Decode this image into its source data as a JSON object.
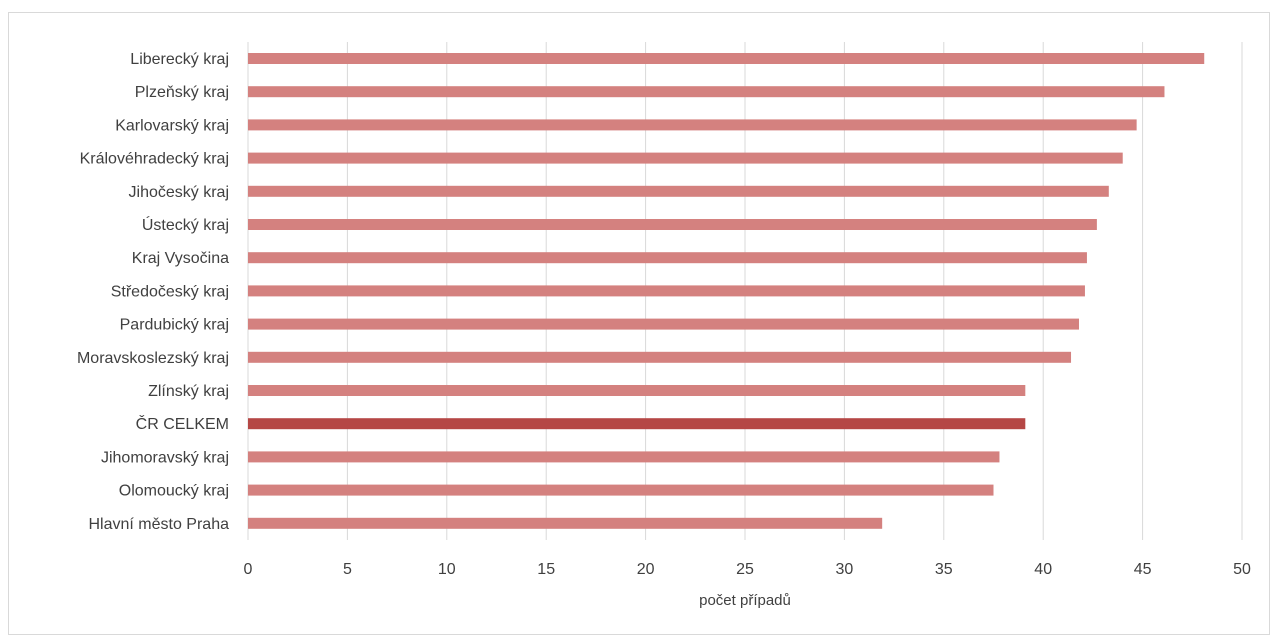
{
  "chart_data": {
    "type": "bar",
    "orientation": "horizontal",
    "title": "",
    "xlabel": "počet případů",
    "ylabel": "",
    "xlim": [
      0,
      50
    ],
    "x_ticks": [
      0,
      5,
      10,
      15,
      20,
      25,
      30,
      35,
      40,
      45,
      50
    ],
    "grid": true,
    "legend": "none",
    "categories": [
      "Liberecký kraj",
      "Plzeňský kraj",
      "Karlovarský kraj",
      "Královéhradecký kraj",
      "Jihočeský kraj",
      "Ústecký kraj",
      "Kraj Vysočina",
      "Středočeský kraj",
      "Pardubický kraj",
      "Moravskoslezský kraj",
      "Zlínský kraj",
      "ČR CELKEM",
      "Jihomoravský kraj",
      "Olomoucký kraj",
      "Hlavní město Praha"
    ],
    "values": [
      48.1,
      46.1,
      44.7,
      44.0,
      43.3,
      42.7,
      42.2,
      42.1,
      41.8,
      41.4,
      39.1,
      39.1,
      37.8,
      37.5,
      31.9
    ],
    "highlight_category": "ČR CELKEM",
    "colors": {
      "bar": "#d4817f",
      "highlight": "#b54745",
      "grid": "#d9d9d9",
      "text": "#404040"
    }
  }
}
